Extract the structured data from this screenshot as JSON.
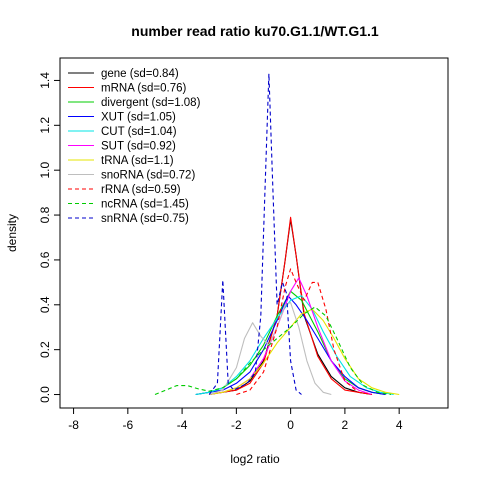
{
  "chart_data": {
    "type": "line",
    "title": "number read ratio ku70.G1.1/WT.G1.1",
    "xlabel": "log2 ratio",
    "ylabel": "density",
    "xlim": [
      -8.5,
      5.8
    ],
    "ylim": [
      -0.06,
      1.5
    ],
    "x_ticks": [
      -8,
      -6,
      -4,
      -2,
      0,
      2,
      4
    ],
    "y_ticks": [
      0.0,
      0.2,
      0.4,
      0.6,
      0.8,
      1.0,
      1.2,
      1.4
    ],
    "x_tick_labels": [
      "-8",
      "-6",
      "-4",
      "-2",
      "0",
      "2",
      "4"
    ],
    "y_tick_labels": [
      "0.0",
      "0.2",
      "0.4",
      "0.6",
      "0.8",
      "1.0",
      "1.2",
      "1.4"
    ],
    "grid": false,
    "legend_position": "top-left",
    "series": [
      {
        "name": "gene (sd=0.84)",
        "color": "#000000",
        "dash": "solid",
        "points": [
          [
            -3,
            0
          ],
          [
            -2,
            0.02
          ],
          [
            -1.5,
            0.06
          ],
          [
            -1,
            0.15
          ],
          [
            -0.5,
            0.35
          ],
          [
            -0.2,
            0.6
          ],
          [
            0,
            0.78
          ],
          [
            0.2,
            0.62
          ],
          [
            0.5,
            0.35
          ],
          [
            1,
            0.18
          ],
          [
            1.5,
            0.08
          ],
          [
            2,
            0.03
          ],
          [
            2.5,
            0.01
          ],
          [
            3,
            0
          ]
        ]
      },
      {
        "name": "mRNA (sd=0.76)",
        "color": "#ff0000",
        "dash": "solid",
        "points": [
          [
            -3,
            0
          ],
          [
            -2,
            0.02
          ],
          [
            -1.5,
            0.05
          ],
          [
            -1,
            0.14
          ],
          [
            -0.5,
            0.35
          ],
          [
            -0.2,
            0.6
          ],
          [
            0,
            0.79
          ],
          [
            0.2,
            0.62
          ],
          [
            0.5,
            0.36
          ],
          [
            1,
            0.17
          ],
          [
            1.5,
            0.07
          ],
          [
            2,
            0.02
          ],
          [
            2.5,
            0.01
          ],
          [
            3,
            0
          ]
        ]
      },
      {
        "name": "divergent (sd=1.08)",
        "color": "#00cc00",
        "dash": "solid",
        "points": [
          [
            -3.5,
            0
          ],
          [
            -3,
            0.01
          ],
          [
            -2.5,
            0.03
          ],
          [
            -2,
            0.07
          ],
          [
            -1.5,
            0.13
          ],
          [
            -1,
            0.22
          ],
          [
            -0.5,
            0.35
          ],
          [
            0,
            0.46
          ],
          [
            0.4,
            0.42
          ],
          [
            1,
            0.28
          ],
          [
            1.5,
            0.15
          ],
          [
            2,
            0.07
          ],
          [
            2.5,
            0.03
          ],
          [
            3,
            0.01
          ],
          [
            3.5,
            0
          ]
        ]
      },
      {
        "name": "XUT (sd=1.05)",
        "color": "#0000ff",
        "dash": "solid",
        "points": [
          [
            -3.5,
            0
          ],
          [
            -3,
            0.01
          ],
          [
            -2.5,
            0.02
          ],
          [
            -2,
            0.05
          ],
          [
            -1.5,
            0.1
          ],
          [
            -1,
            0.2
          ],
          [
            -0.5,
            0.33
          ],
          [
            -0.1,
            0.44
          ],
          [
            0.2,
            0.4
          ],
          [
            0.6,
            0.33
          ],
          [
            1,
            0.25
          ],
          [
            1.5,
            0.15
          ],
          [
            2,
            0.08
          ],
          [
            2.5,
            0.03
          ],
          [
            3,
            0.01
          ],
          [
            3.5,
            0
          ]
        ]
      },
      {
        "name": "CUT (sd=1.04)",
        "color": "#00e5e5",
        "dash": "solid",
        "points": [
          [
            -3.5,
            0
          ],
          [
            -3,
            0.01
          ],
          [
            -2.5,
            0.03
          ],
          [
            -2,
            0.08
          ],
          [
            -1.5,
            0.15
          ],
          [
            -1,
            0.25
          ],
          [
            -0.5,
            0.34
          ],
          [
            0,
            0.42
          ],
          [
            0.4,
            0.44
          ],
          [
            0.8,
            0.38
          ],
          [
            1.2,
            0.28
          ],
          [
            1.7,
            0.17
          ],
          [
            2.2,
            0.08
          ],
          [
            2.8,
            0.03
          ],
          [
            3.3,
            0.01
          ],
          [
            3.8,
            0
          ]
        ]
      },
      {
        "name": "SUT (sd=0.92)",
        "color": "#ff00ff",
        "dash": "solid",
        "points": [
          [
            -3,
            0
          ],
          [
            -2.5,
            0.01
          ],
          [
            -2,
            0.03
          ],
          [
            -1.5,
            0.07
          ],
          [
            -1,
            0.16
          ],
          [
            -0.5,
            0.3
          ],
          [
            0,
            0.46
          ],
          [
            0.3,
            0.52
          ],
          [
            0.6,
            0.44
          ],
          [
            1,
            0.3
          ],
          [
            1.5,
            0.15
          ],
          [
            2,
            0.06
          ],
          [
            2.5,
            0.02
          ],
          [
            3,
            0
          ]
        ]
      },
      {
        "name": "tRNA (sd=1.1)",
        "color": "#e5e500",
        "dash": "solid",
        "points": [
          [
            -3,
            0
          ],
          [
            -2.5,
            0.01
          ],
          [
            -2,
            0.03
          ],
          [
            -1.5,
            0.07
          ],
          [
            -1,
            0.14
          ],
          [
            -0.5,
            0.23
          ],
          [
            0,
            0.3
          ],
          [
            0.4,
            0.36
          ],
          [
            0.8,
            0.38
          ],
          [
            1.2,
            0.33
          ],
          [
            1.6,
            0.25
          ],
          [
            2,
            0.16
          ],
          [
            2.5,
            0.07
          ],
          [
            3,
            0.03
          ],
          [
            3.5,
            0.01
          ],
          [
            4,
            0
          ]
        ]
      },
      {
        "name": "snoRNA (sd=0.72)",
        "color": "#bebebe",
        "dash": "solid",
        "points": [
          [
            -3,
            0
          ],
          [
            -2.5,
            0.02
          ],
          [
            -2,
            0.12
          ],
          [
            -1.7,
            0.25
          ],
          [
            -1.4,
            0.32
          ],
          [
            -1.1,
            0.26
          ],
          [
            -0.8,
            0.22
          ],
          [
            -0.5,
            0.3
          ],
          [
            -0.2,
            0.4
          ],
          [
            0,
            0.41
          ],
          [
            0.3,
            0.3
          ],
          [
            0.6,
            0.15
          ],
          [
            0.9,
            0.05
          ],
          [
            1.2,
            0.01
          ],
          [
            1.5,
            0
          ]
        ]
      },
      {
        "name": "rRNA (sd=0.59)",
        "color": "#ff0000",
        "dash": "dashed",
        "points": [
          [
            -2,
            0
          ],
          [
            -1.5,
            0.02
          ],
          [
            -1,
            0.1
          ],
          [
            -0.5,
            0.3
          ],
          [
            -0.2,
            0.48
          ],
          [
            0,
            0.56
          ],
          [
            0.2,
            0.5
          ],
          [
            0.5,
            0.42
          ],
          [
            0.8,
            0.5
          ],
          [
            1,
            0.5
          ],
          [
            1.3,
            0.38
          ],
          [
            1.6,
            0.2
          ],
          [
            2,
            0.06
          ],
          [
            2.5,
            0.01
          ],
          [
            3,
            0
          ]
        ]
      },
      {
        "name": "ncRNA (sd=1.45)",
        "color": "#00cc00",
        "dash": "dashed",
        "points": [
          [
            -5,
            0
          ],
          [
            -4.6,
            0.02
          ],
          [
            -4.2,
            0.04
          ],
          [
            -3.8,
            0.04
          ],
          [
            -3.4,
            0.025
          ],
          [
            -3,
            0.015
          ],
          [
            -2.5,
            0.03
          ],
          [
            -2,
            0.07
          ],
          [
            -1.5,
            0.14
          ],
          [
            -1,
            0.2
          ],
          [
            -0.5,
            0.25
          ],
          [
            0,
            0.3
          ],
          [
            0.5,
            0.36
          ],
          [
            0.9,
            0.39
          ],
          [
            1.3,
            0.35
          ],
          [
            1.7,
            0.25
          ],
          [
            2.2,
            0.12
          ],
          [
            2.7,
            0.04
          ],
          [
            3.2,
            0.01
          ],
          [
            3.7,
            0
          ]
        ]
      },
      {
        "name": "snRNA (sd=0.75)",
        "color": "#0000cc",
        "dash": "dashed",
        "points": [
          [
            -3,
            0
          ],
          [
            -2.7,
            0.05
          ],
          [
            -2.5,
            0.51
          ],
          [
            -2.3,
            0.05
          ],
          [
            -2.1,
            0.02
          ],
          [
            -1.6,
            0.05
          ],
          [
            -1.3,
            0.1
          ],
          [
            -1.1,
            0.35
          ],
          [
            -0.95,
            0.9
          ],
          [
            -0.8,
            1.43
          ],
          [
            -0.65,
            0.9
          ],
          [
            -0.5,
            0.4
          ],
          [
            -0.3,
            0.5
          ],
          [
            -0.15,
            0.45
          ],
          [
            0,
            0.15
          ],
          [
            0.2,
            0.02
          ],
          [
            0.4,
            0
          ]
        ]
      }
    ]
  }
}
